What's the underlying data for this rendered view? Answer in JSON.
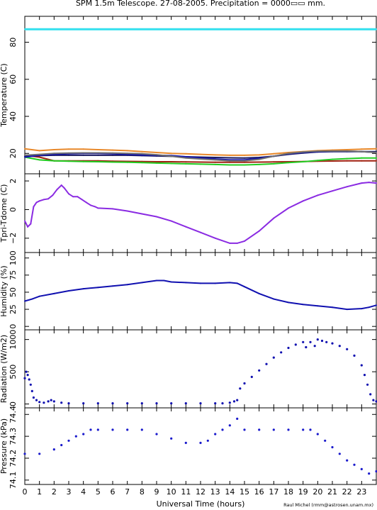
{
  "title": "SPM 1.5m Telescope. 27-08-2005. Precipitation = 0000▭▭ mm.",
  "xlabel": "Universal Time (hours)",
  "credit": "Raul Michel (rmm@astrosen.unam.mx)",
  "x_ticks": [
    "0",
    "1",
    "2",
    "3",
    "4",
    "5",
    "6",
    "7",
    "8",
    "9",
    "10",
    "11",
    "12",
    "13",
    "14",
    "15",
    "16",
    "17",
    "18",
    "19",
    "20",
    "21",
    "22",
    "23"
  ],
  "colors": {
    "cyan": "#33e0ee",
    "orange": "#e8882a",
    "darkred": "#a02010",
    "green": "#22cc22",
    "navy": "#1a1a60",
    "blue": "#1010b0",
    "gray": "#707070",
    "purple": "#8a2be2",
    "pblue": "#1a1acc"
  },
  "chart_data": [
    {
      "type": "line",
      "ylabel": "Temperature (C)",
      "ylim": [
        9,
        94
      ],
      "y_ticks": [
        "20",
        "40",
        "60",
        "80"
      ],
      "xlim": [
        0,
        24
      ],
      "series": [
        {
          "color": "cyan",
          "x": [
            0,
            24
          ],
          "y": [
            87,
            87
          ]
        },
        {
          "color": "orange",
          "x": [
            0,
            1,
            2,
            3,
            4,
            5,
            6,
            7,
            8,
            9,
            10,
            11,
            12,
            13,
            14,
            15,
            16,
            17,
            18,
            19,
            20,
            21,
            22,
            23,
            24
          ],
          "y": [
            22.5,
            21.5,
            22,
            22.3,
            22.3,
            22,
            21.8,
            21.5,
            21,
            20.5,
            20,
            19.8,
            19.5,
            19.2,
            19,
            19,
            19.2,
            19.8,
            20.5,
            21,
            21.5,
            21.8,
            22,
            22.3,
            22.5
          ]
        },
        {
          "color": "darkred",
          "x": [
            0,
            1,
            2,
            3,
            4,
            5,
            6,
            7,
            8,
            9,
            10,
            11,
            12,
            13,
            14,
            15,
            16,
            17,
            18,
            19,
            20,
            21,
            22,
            23,
            24
          ],
          "y": [
            19,
            18,
            16,
            16,
            16,
            16,
            15.8,
            15.7,
            15.6,
            15.5,
            15.5,
            15.4,
            15.3,
            15.2,
            15.2,
            15.2,
            15.3,
            15.4,
            15.5,
            15.6,
            15.8,
            15.9,
            16,
            16,
            16
          ]
        },
        {
          "color": "green",
          "x": [
            0,
            1,
            2,
            3,
            4,
            5,
            6,
            7,
            8,
            9,
            10,
            11,
            12,
            13,
            14,
            15,
            16,
            17,
            18,
            19,
            20,
            21,
            22,
            23,
            24
          ],
          "y": [
            18,
            16.5,
            16,
            15.8,
            15.6,
            15.5,
            15.3,
            15.2,
            15,
            14.8,
            14.6,
            14.4,
            14.2,
            14,
            13.8,
            13.8,
            14,
            14.4,
            15,
            15.5,
            16.2,
            16.8,
            17.2,
            17.5,
            17.5
          ]
        },
        {
          "color": "navy",
          "x": [
            0,
            1,
            2,
            3,
            4,
            5,
            6,
            7,
            8,
            9,
            10,
            11,
            12,
            13,
            14,
            15,
            16,
            17,
            18,
            19,
            20,
            21,
            22,
            23,
            24
          ],
          "y": [
            18.5,
            18.8,
            19,
            19,
            19,
            19,
            19,
            19,
            18.8,
            18.6,
            18.4,
            18.2,
            18,
            17.8,
            17.6,
            17.5,
            17.8,
            18.5,
            19.5,
            20.2,
            20.8,
            21,
            21,
            21,
            21
          ]
        },
        {
          "color": "blue",
          "x": [
            0,
            1,
            2,
            3,
            4,
            5,
            6,
            7,
            8,
            9,
            10,
            11,
            12,
            13,
            14,
            15,
            16,
            17,
            18,
            19,
            20,
            21,
            22,
            23,
            24
          ],
          "y": [
            18,
            19,
            19.5,
            19.8,
            20,
            20,
            19.8,
            19.5,
            19.2,
            19,
            18.8,
            18.2,
            17.5,
            17,
            16.5,
            16.5,
            17.3,
            18.5,
            19.8,
            20.5,
            21,
            21.2,
            21.2,
            21,
            20.5
          ]
        },
        {
          "color": "gray",
          "x": [
            0,
            1,
            2,
            3,
            4,
            5,
            6,
            7,
            8,
            9,
            10,
            11,
            12,
            13,
            14,
            15,
            16,
            17,
            18,
            19,
            20,
            21,
            22,
            23,
            24
          ],
          "y": [
            19,
            19.5,
            20,
            20.2,
            20.3,
            20.3,
            20.2,
            20,
            19.8,
            19.3,
            18.5,
            17.5,
            17,
            16.5,
            16,
            16,
            16.8,
            18.5,
            20,
            20.8,
            21.2,
            21.3,
            21.3,
            21,
            20.5
          ]
        }
      ]
    },
    {
      "type": "line",
      "ylabel": "Tpri-Tdome (C)",
      "ylim": [
        -3,
        2.5
      ],
      "y_ticks": [
        "−2",
        "0",
        "2"
      ],
      "xlim": [
        0,
        24
      ],
      "series": [
        {
          "color": "purple",
          "x": [
            0,
            0.2,
            0.4,
            0.6,
            0.8,
            1,
            1.3,
            1.6,
            1.9,
            2.2,
            2.5,
            2.7,
            3,
            3.3,
            3.6,
            3.9,
            4.2,
            4.5,
            4.8,
            5,
            6,
            7,
            8,
            9,
            10,
            11,
            12,
            13,
            14,
            14.5,
            15,
            16,
            17,
            18,
            19,
            20,
            21,
            22,
            23,
            23.5,
            24
          ],
          "y": [
            -0.8,
            -1.2,
            -1.0,
            0.2,
            0.5,
            0.6,
            0.7,
            0.75,
            1.0,
            1.4,
            1.7,
            1.5,
            1.1,
            0.9,
            0.9,
            0.7,
            0.5,
            0.3,
            0.2,
            0.1,
            0.05,
            -0.1,
            -0.3,
            -0.5,
            -0.8,
            -1.2,
            -1.6,
            -2.0,
            -2.35,
            -2.35,
            -2.2,
            -1.5,
            -0.6,
            0.1,
            0.6,
            1.0,
            1.3,
            1.6,
            1.85,
            1.9,
            1.85
          ]
        }
      ]
    },
    {
      "type": "line",
      "ylabel": "Humidity (%)",
      "ylim": [
        -5,
        108
      ],
      "y_ticks": [
        "0",
        "25",
        "50",
        "75",
        "100"
      ],
      "xlim": [
        0,
        24
      ],
      "series": [
        {
          "color": "blue",
          "x": [
            0,
            0.5,
            1,
            2,
            3,
            4,
            5,
            6,
            7,
            8,
            9,
            9.5,
            10,
            11,
            12,
            13,
            14,
            14.5,
            15,
            16,
            17,
            18,
            19,
            20,
            21,
            22,
            23,
            23.5,
            24
          ],
          "y": [
            37,
            40,
            44,
            48,
            52,
            55,
            57,
            59,
            61,
            64,
            67,
            67,
            65,
            64,
            63,
            63,
            64,
            63,
            58,
            48,
            40,
            35,
            32,
            30,
            28,
            25,
            26,
            28,
            31
          ]
        }
      ]
    },
    {
      "type": "scatter",
      "ylabel": "Radiation (W/m2)",
      "ylim": [
        -60,
        1150
      ],
      "y_ticks": [
        "0",
        "500",
        "1000"
      ],
      "xlim": [
        0,
        24
      ],
      "series": [
        {
          "color": "blue",
          "x": [
            0,
            0.1,
            0.2,
            0.3,
            0.4,
            0.5,
            0.6,
            0.8,
            1,
            1.3,
            1.6,
            1.8,
            2,
            2.5,
            3,
            4,
            5,
            6,
            7,
            8,
            9,
            10,
            11,
            12,
            13,
            13.5,
            14,
            14.3,
            14.5,
            14.7,
            15,
            15.5,
            16,
            16.5,
            17,
            17.5,
            18,
            18.5,
            19,
            19.2,
            19.5,
            19.8,
            20,
            20.3,
            20.6,
            21,
            21.5,
            22,
            22.5,
            23,
            23.2,
            23.4,
            23.6,
            23.8,
            24
          ],
          "y": [
            400,
            500,
            450,
            380,
            300,
            200,
            100,
            60,
            30,
            20,
            40,
            60,
            40,
            20,
            10,
            10,
            10,
            10,
            10,
            10,
            10,
            10,
            10,
            10,
            10,
            10,
            20,
            40,
            60,
            240,
            320,
            420,
            520,
            620,
            720,
            800,
            870,
            920,
            960,
            880,
            960,
            900,
            1000,
            980,
            960,
            940,
            900,
            850,
            750,
            600,
            450,
            300,
            150,
            60,
            40
          ]
        }
      ]
    },
    {
      "type": "scatter",
      "ylabel": "Pressure (kPa)",
      "ylim": [
        74.08,
        74.43
      ],
      "y_ticks": [
        "74.1",
        "74.2",
        "74.3",
        "74.4"
      ],
      "xlim": [
        0,
        24
      ],
      "series": [
        {
          "color": "pblue",
          "x": [
            0,
            1,
            2,
            2.5,
            3,
            3.5,
            4,
            4.5,
            5,
            6,
            7,
            8,
            9,
            10,
            11,
            12,
            12.5,
            13,
            13.5,
            14,
            14.5,
            15,
            16,
            17,
            18,
            19,
            19.5,
            20,
            20.5,
            21,
            21.5,
            22,
            22.5,
            23,
            23.5,
            24
          ],
          "y": [
            74.22,
            74.22,
            74.24,
            74.26,
            74.28,
            74.3,
            74.31,
            74.33,
            74.33,
            74.33,
            74.33,
            74.33,
            74.31,
            74.29,
            74.27,
            74.27,
            74.28,
            74.31,
            74.33,
            74.35,
            74.38,
            74.33,
            74.33,
            74.33,
            74.33,
            74.33,
            74.33,
            74.31,
            74.28,
            74.25,
            74.22,
            74.19,
            74.17,
            74.15,
            74.13,
            74.14
          ]
        }
      ]
    }
  ]
}
